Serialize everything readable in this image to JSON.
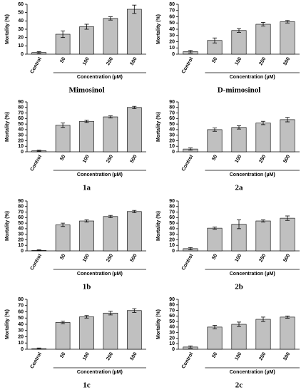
{
  "chart_data": [
    {
      "type": "bar",
      "title": "Mimosinol",
      "x_label": "Concentration (µM)",
      "y_label": "Mortality (%)",
      "categories": [
        "Control",
        "50",
        "100",
        "250",
        "500"
      ],
      "values": [
        2,
        24,
        33,
        43,
        54
      ],
      "errors": [
        1,
        4,
        3,
        2,
        5
      ],
      "color": "#c0c0c0",
      "ylim": [
        0,
        60
      ],
      "yticks": [
        0,
        10,
        20,
        30,
        40,
        50,
        60
      ]
    },
    {
      "type": "bar",
      "title": "D-mimosinol",
      "x_label": "Concentration (µM)",
      "y_label": "Mortality (%)",
      "categories": [
        "Control",
        "50",
        "100",
        "250",
        "500"
      ],
      "values": [
        4,
        22,
        38,
        48,
        52
      ],
      "errors": [
        2,
        4,
        3,
        3,
        2
      ],
      "color": "#c0c0c0",
      "ylim": [
        0,
        80
      ],
      "yticks": [
        0,
        10,
        20,
        30,
        40,
        50,
        60,
        70,
        80
      ]
    },
    {
      "type": "bar",
      "title": "1a",
      "x_label": "Concentration (µM)",
      "y_label": "Mortality (%)",
      "categories": [
        "Control",
        "50",
        "100",
        "250",
        "500"
      ],
      "values": [
        2,
        48,
        55,
        63,
        80
      ],
      "errors": [
        1,
        4,
        2,
        2,
        2
      ],
      "color": "#c0c0c0",
      "ylim": [
        0,
        90
      ],
      "yticks": [
        0,
        10,
        20,
        30,
        40,
        50,
        60,
        70,
        80,
        90
      ]
    },
    {
      "type": "bar",
      "title": "2a",
      "x_label": "Concentration (µM)",
      "y_label": "Mortality (%)",
      "categories": [
        "Control",
        "50",
        "100",
        "250",
        "500"
      ],
      "values": [
        5,
        40,
        44,
        52,
        58
      ],
      "errors": [
        2,
        3,
        3,
        3,
        4
      ],
      "color": "#c0c0c0",
      "ylim": [
        0,
        90
      ],
      "yticks": [
        0,
        10,
        20,
        30,
        40,
        50,
        60,
        70,
        80,
        90
      ]
    },
    {
      "type": "bar",
      "title": "1b",
      "x_label": "Concentration (µM)",
      "y_label": "Mortality (%)",
      "categories": [
        "Control",
        "50",
        "100",
        "250",
        "500"
      ],
      "values": [
        1,
        47,
        54,
        62,
        71
      ],
      "errors": [
        1,
        3,
        2,
        2,
        2
      ],
      "color": "#c0c0c0",
      "ylim": [
        0,
        90
      ],
      "yticks": [
        0,
        10,
        20,
        30,
        40,
        50,
        60,
        70,
        80,
        90
      ]
    },
    {
      "type": "bar",
      "title": "2b",
      "x_label": "Concentration (µM)",
      "y_label": "Mortality (%)",
      "categories": [
        "Control",
        "50",
        "100",
        "250",
        "500"
      ],
      "values": [
        4,
        41,
        48,
        54,
        59
      ],
      "errors": [
        2,
        2,
        8,
        2,
        4
      ],
      "color": "#c0c0c0",
      "ylim": [
        0,
        90
      ],
      "yticks": [
        0,
        10,
        20,
        30,
        40,
        50,
        60,
        70,
        80,
        90
      ]
    },
    {
      "type": "bar",
      "title": "1c",
      "x_label": "Concentration (µM)",
      "y_label": "Mortality (%)",
      "categories": [
        "Control",
        "50",
        "100",
        "250",
        "500"
      ],
      "values": [
        1,
        43,
        52,
        58,
        62
      ],
      "errors": [
        1,
        2,
        2,
        3,
        3
      ],
      "color": "#c0c0c0",
      "ylim": [
        0,
        80
      ],
      "yticks": [
        0,
        10,
        20,
        30,
        40,
        50,
        60,
        70,
        80
      ]
    },
    {
      "type": "bar",
      "title": "2c",
      "x_label": "Concentration (µM)",
      "y_label": "Mortality (%)",
      "categories": [
        "Control",
        "50",
        "100",
        "250",
        "500"
      ],
      "values": [
        4,
        40,
        45,
        54,
        58
      ],
      "errors": [
        2,
        3,
        4,
        4,
        2
      ],
      "color": "#c0c0c0",
      "ylim": [
        0,
        90
      ],
      "yticks": [
        0,
        10,
        20,
        30,
        40,
        50,
        60,
        70,
        80,
        90
      ]
    }
  ]
}
